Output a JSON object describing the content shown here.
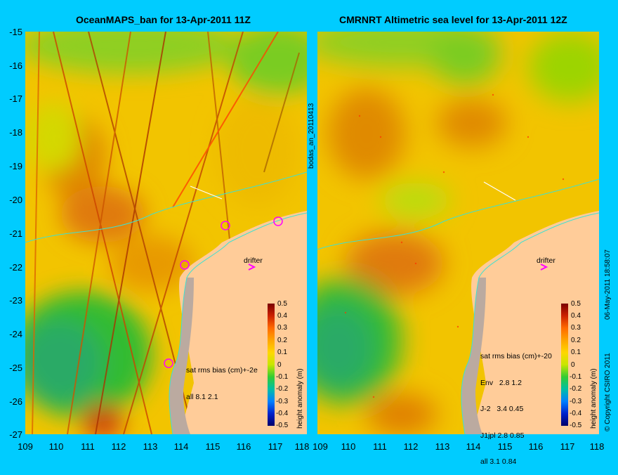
{
  "left_title": "OceanMAPS_ban for 13-Apr-2011 11Z",
  "right_title": "CMRNRT Altimetric sea level  for 13-Apr-2011 12Z",
  "lat_ticks": [
    "-15",
    "-16",
    "-17",
    "-18",
    "-19",
    "-20",
    "-21",
    "-22",
    "-23",
    "-24",
    "-25",
    "-26",
    "-27"
  ],
  "lon_ticks": [
    "109",
    "110",
    "111",
    "112",
    "113",
    "114",
    "115",
    "116",
    "117",
    "118"
  ],
  "left_lon_ticks": [
    "109",
    "110",
    "111",
    "112",
    "113",
    "114",
    "115",
    "116",
    "117",
    "118"
  ],
  "right_lon_ticks": [
    "109",
    "110",
    "111",
    "112",
    "113",
    "114",
    "115",
    "116",
    "117",
    "118"
  ],
  "mid_label": "bodas_an_20110413",
  "right_edge_label": "06-May-2011 18:58:07",
  "copyright": "© Copyright CSIRO 2011",
  "left_drifter": "drifter",
  "right_drifter": "drifter",
  "left_stats": {
    "header": "sat rms bias (cm)+-2e",
    "rows": [
      "all 8.1 2.1"
    ]
  },
  "right_stats": {
    "header": "sat rms bias (cm)+-20",
    "rows": [
      "Env   2.8 1.2",
      "J-2   3.4 0.45",
      "J1jpl 2.8 0.85",
      "all 3.1 0.84"
    ]
  },
  "colorbar": {
    "title": "height anomaly (m)",
    "labels": [
      "0.5",
      "0.4",
      "0.3",
      "0.2",
      "0.1",
      "0",
      "-0.1",
      "-0.2",
      "-0.3",
      "-0.4",
      "-0.5"
    ]
  },
  "colors": {
    "background": "#00ccff",
    "land": "#ffcc99",
    "coast_shelf": "#bbaaa0",
    "drifter_marker": "#ff00ff"
  }
}
